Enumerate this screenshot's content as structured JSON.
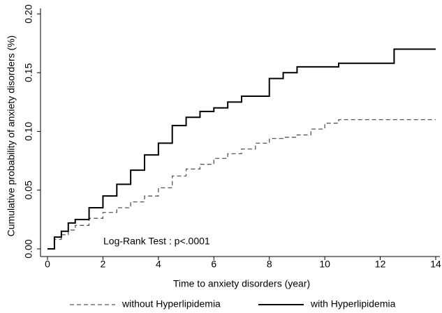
{
  "chart_data": {
    "type": "line",
    "step": "post",
    "annotation": "Log-Rank Test : p<.0001",
    "x_label": "Time to anxiety disorders (year)",
    "y_label": "Cumulative probability of anxiety disorders (%)",
    "x": [
      0,
      0.25,
      0.5,
      0.75,
      1,
      1.5,
      2,
      2.5,
      3,
      3.5,
      4,
      4.5,
      5,
      5.5,
      6,
      6.5,
      7,
      7.5,
      8,
      8.5,
      9,
      9.5,
      10,
      10.5,
      11,
      12,
      12.5,
      13,
      14
    ],
    "series": [
      {
        "name": "without Hyperlipidemia",
        "color": "#555555",
        "line_style": "dashed",
        "values": [
          0,
          0.008,
          0.012,
          0.016,
          0.02,
          0.026,
          0.031,
          0.035,
          0.04,
          0.045,
          0.052,
          0.062,
          0.068,
          0.072,
          0.077,
          0.081,
          0.085,
          0.09,
          0.094,
          0.095,
          0.097,
          0.102,
          0.107,
          0.11,
          0.11,
          0.11,
          0.11,
          0.11,
          0.11
        ]
      },
      {
        "name": "with Hyperlipidemia",
        "color": "#000000",
        "line_style": "solid",
        "values": [
          0,
          0.01,
          0.015,
          0.022,
          0.025,
          0.035,
          0.045,
          0.055,
          0.067,
          0.08,
          0.09,
          0.105,
          0.112,
          0.117,
          0.12,
          0.125,
          0.13,
          0.13,
          0.145,
          0.15,
          0.155,
          0.155,
          0.155,
          0.158,
          0.158,
          0.158,
          0.17,
          0.17,
          0.17
        ]
      }
    ],
    "xlim": [
      0,
      14
    ],
    "xticks": [
      0,
      2,
      4,
      6,
      8,
      10,
      12,
      14
    ],
    "ylim": [
      0,
      0.2
    ],
    "yticks": [
      {
        "value": 0,
        "label": "0.00"
      },
      {
        "value": 0.05,
        "label": "0.05"
      },
      {
        "value": 0.1,
        "label": "0.10"
      },
      {
        "value": 0.15,
        "label": "0.15"
      },
      {
        "value": 0.2,
        "label": "0.20"
      }
    ],
    "legend": "bottom"
  }
}
